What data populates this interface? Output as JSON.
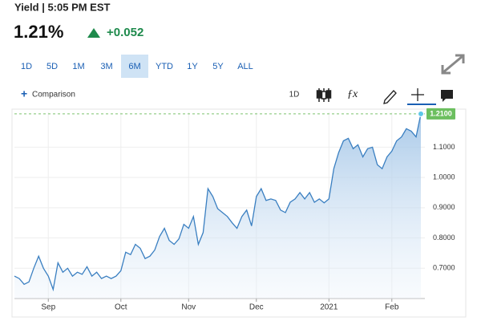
{
  "header": {
    "title": "Yield | 5:05 PM EST",
    "price": "1.21%",
    "change": "+0.052"
  },
  "ranges": [
    {
      "label": "1D"
    },
    {
      "label": "5D"
    },
    {
      "label": "1M"
    },
    {
      "label": "3M"
    },
    {
      "label": "6M",
      "active": true
    },
    {
      "label": "YTD"
    },
    {
      "label": "1Y"
    },
    {
      "label": "5Y"
    },
    {
      "label": "ALL"
    }
  ],
  "toolbar": {
    "comparison": "Comparison",
    "interval": "1D"
  },
  "chart_data": {
    "type": "area",
    "categories": [
      null,
      null,
      null,
      null,
      null,
      null,
      null,
      "Sep",
      null,
      null,
      null,
      null,
      null,
      null,
      null,
      null,
      null,
      null,
      null,
      null,
      null,
      null,
      "Oct",
      null,
      null,
      null,
      null,
      null,
      null,
      null,
      null,
      null,
      null,
      null,
      null,
      null,
      "Nov",
      null,
      null,
      null,
      null,
      null,
      null,
      null,
      null,
      null,
      null,
      null,
      null,
      null,
      "Dec",
      null,
      null,
      null,
      null,
      null,
      null,
      null,
      null,
      null,
      null,
      null,
      null,
      null,
      null,
      "2021",
      null,
      null,
      null,
      null,
      null,
      null,
      null,
      null,
      null,
      null,
      null,
      null,
      "Feb",
      null,
      null,
      null,
      null,
      null,
      null
    ],
    "values": [
      0.674,
      0.666,
      0.647,
      0.655,
      0.7,
      0.74,
      0.7,
      0.674,
      0.63,
      0.718,
      0.687,
      0.7,
      0.674,
      0.687,
      0.68,
      0.705,
      0.674,
      0.687,
      0.666,
      0.674,
      0.666,
      0.674,
      0.692,
      0.753,
      0.745,
      0.779,
      0.766,
      0.732,
      0.74,
      0.76,
      0.805,
      0.832,
      0.792,
      0.779,
      0.797,
      0.845,
      0.832,
      0.871,
      0.779,
      0.818,
      0.963,
      0.937,
      0.897,
      0.884,
      0.871,
      0.85,
      0.832,
      0.871,
      0.892,
      0.84,
      0.937,
      0.963,
      0.924,
      0.929,
      0.924,
      0.892,
      0.884,
      0.918,
      0.929,
      0.95,
      0.929,
      0.95,
      0.918,
      0.929,
      0.916,
      0.929,
      1.029,
      1.082,
      1.121,
      1.129,
      1.095,
      1.108,
      1.068,
      1.095,
      1.1,
      1.042,
      1.029,
      1.068,
      1.087,
      1.121,
      1.134,
      1.161,
      1.153,
      1.134,
      1.21
    ],
    "color": "#3a7fc1",
    "ylim": [
      0.6,
      1.215
    ],
    "yticks": [
      {
        "value": 0.7,
        "label": "0.7000"
      },
      {
        "value": 0.8,
        "label": "0.8000"
      },
      {
        "value": 0.9,
        "label": "0.9000"
      },
      {
        "value": 1.0,
        "label": "1.0000"
      },
      {
        "value": 1.1,
        "label": "1.1000"
      }
    ],
    "current": {
      "value": 1.21,
      "label": "1.2100"
    },
    "grid": true
  }
}
